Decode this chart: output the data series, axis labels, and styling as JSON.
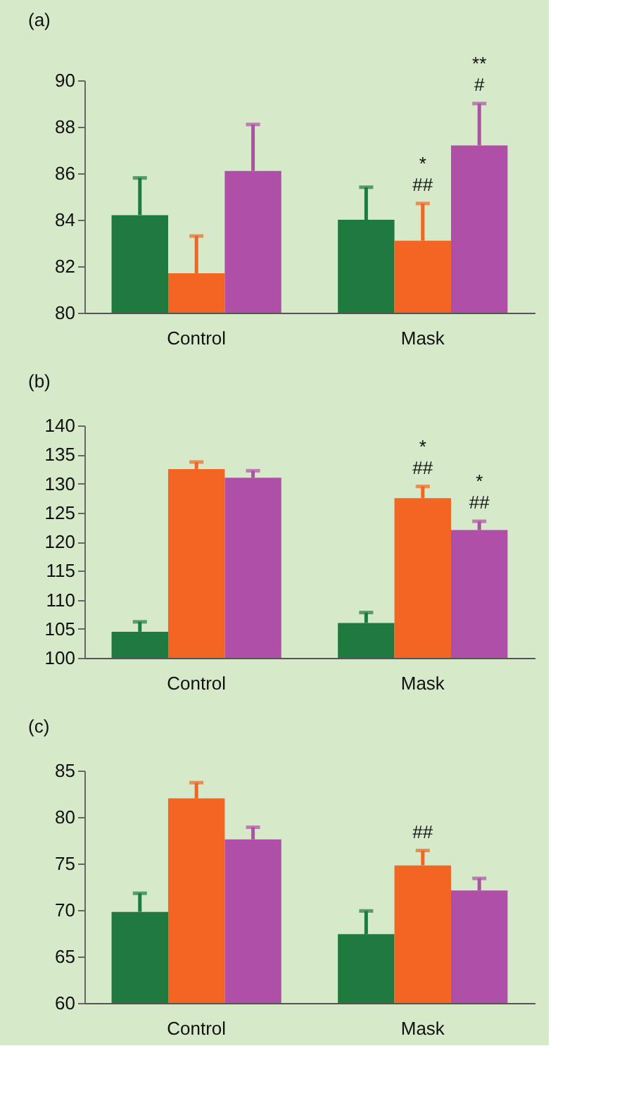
{
  "chart_data": [
    {
      "type": "bar",
      "title": "(a)",
      "categories": [
        "Control",
        "Mask"
      ],
      "ylim": [
        80,
        90
      ],
      "yticks": [
        80,
        82,
        84,
        86,
        88,
        90
      ],
      "grid": false,
      "series": [
        {
          "color": "#1e7a3e",
          "values": [
            84.2,
            84.0
          ],
          "errors": [
            [
              84.2,
              85.8
            ],
            [
              84.0,
              85.4
            ]
          ]
        },
        {
          "color": "#f26522",
          "values": [
            81.7,
            83.1
          ],
          "errors": [
            [
              81.7,
              83.3
            ],
            [
              83.1,
              84.7
            ]
          ],
          "value_labels": [
            null,
            "*\n##"
          ]
        },
        {
          "color": "#b04fa8",
          "values": [
            86.1,
            87.2
          ],
          "errors": [
            [
              86.1,
              88.1
            ],
            [
              87.2,
              89.0
            ]
          ],
          "value_labels": [
            null,
            "**\n#"
          ]
        }
      ]
    },
    {
      "type": "bar",
      "title": "(b)",
      "categories": [
        "Control",
        "Mask"
      ],
      "ylim": [
        100,
        140
      ],
      "yticks": [
        100,
        105,
        110,
        115,
        120,
        125,
        130,
        135,
        140
      ],
      "grid": false,
      "series": [
        {
          "color": "#1e7a3e",
          "values": [
            104.5,
            106.0
          ],
          "errors": [
            [
              104.5,
              106.2
            ],
            [
              106.0,
              107.8
            ]
          ]
        },
        {
          "color": "#f26522",
          "values": [
            132.5,
            127.5
          ],
          "errors": [
            [
              132.5,
              133.7
            ],
            [
              127.5,
              129.5
            ]
          ],
          "value_labels": [
            null,
            "*\n##"
          ]
        },
        {
          "color": "#b04fa8",
          "values": [
            131.0,
            122.0
          ],
          "errors": [
            [
              131.0,
              132.2
            ],
            [
              122.0,
              123.5
            ]
          ],
          "value_labels": [
            null,
            "*\n##"
          ]
        }
      ]
    },
    {
      "type": "bar",
      "title": "(c)",
      "categories": [
        "Control",
        "Mask"
      ],
      "ylim": [
        60,
        85
      ],
      "yticks": [
        60,
        65,
        70,
        75,
        80,
        85
      ],
      "grid": false,
      "series": [
        {
          "color": "#1e7a3e",
          "values": [
            69.8,
            67.4
          ],
          "errors": [
            [
              69.8,
              71.8
            ],
            [
              67.4,
              69.9
            ]
          ]
        },
        {
          "color": "#f26522",
          "values": [
            82.0,
            74.8
          ],
          "errors": [
            [
              82.0,
              83.7
            ],
            [
              74.8,
              76.4
            ]
          ],
          "value_labels": [
            null,
            "##"
          ]
        },
        {
          "color": "#b04fa8",
          "values": [
            77.6,
            72.1
          ],
          "errors": [
            [
              77.6,
              78.9
            ],
            [
              72.1,
              73.4
            ]
          ]
        }
      ]
    }
  ]
}
